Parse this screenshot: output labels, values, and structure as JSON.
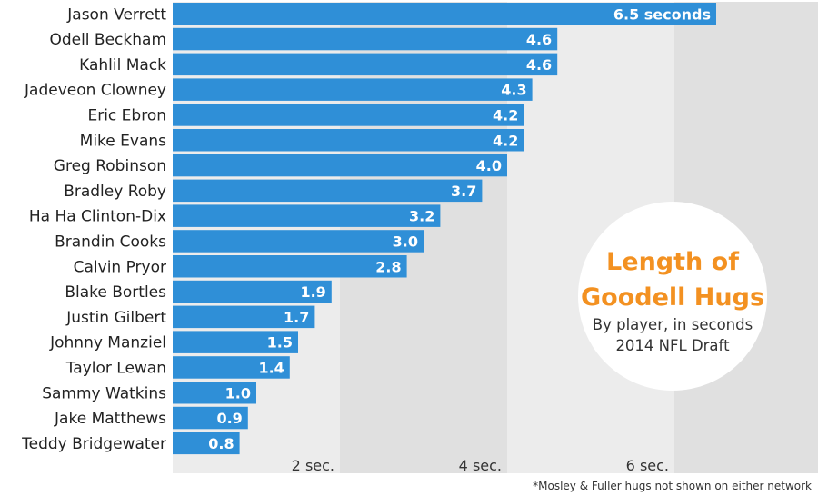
{
  "chart_data": {
    "type": "bar",
    "orientation": "horizontal",
    "title": [
      "Length of",
      "Goodell Hugs"
    ],
    "subtitle": [
      "By player, in seconds",
      "2014 NFL Draft"
    ],
    "categories": [
      "Jason Verrett",
      "Odell Beckham",
      "Kahlil Mack",
      "Jadeveon Clowney",
      "Eric Ebron",
      "Mike Evans",
      "Greg Robinson",
      "Bradley Roby",
      "Ha Ha Clinton-Dix",
      "Brandin Cooks",
      "Calvin Pryor",
      "Blake Bortles",
      "Justin Gilbert",
      "Johnny Manziel",
      "Taylor Lewan",
      "Sammy Watkins",
      "Jake Matthews",
      "Teddy Bridgewater"
    ],
    "values": [
      6.5,
      4.6,
      4.6,
      4.3,
      4.2,
      4.2,
      4.0,
      3.7,
      3.2,
      3.0,
      2.8,
      1.9,
      1.7,
      1.5,
      1.4,
      1.0,
      0.9,
      0.8
    ],
    "data_labels": [
      "6.5 seconds",
      "4.6",
      "4.6",
      "4.3",
      "4.2",
      "4.2",
      "4.0",
      "3.7",
      "3.2",
      "3.0",
      "2.8",
      "1.9",
      "1.7",
      "1.5",
      "1.4",
      "1.0",
      "0.9",
      "0.8"
    ],
    "x_ticks": [
      2,
      4,
      6
    ],
    "x_tick_labels": [
      "2 sec.",
      "4 sec.",
      "6 sec."
    ],
    "xlim": [
      0,
      7.7
    ],
    "grid": "alternating vertical bands every 2 seconds",
    "bar_color": "#2f8fd7",
    "band_colors": [
      "#ececec",
      "#e0e0e0"
    ],
    "title_color": "#f39121",
    "footnote": "*Mosley & Fuller hugs not shown on either network"
  }
}
